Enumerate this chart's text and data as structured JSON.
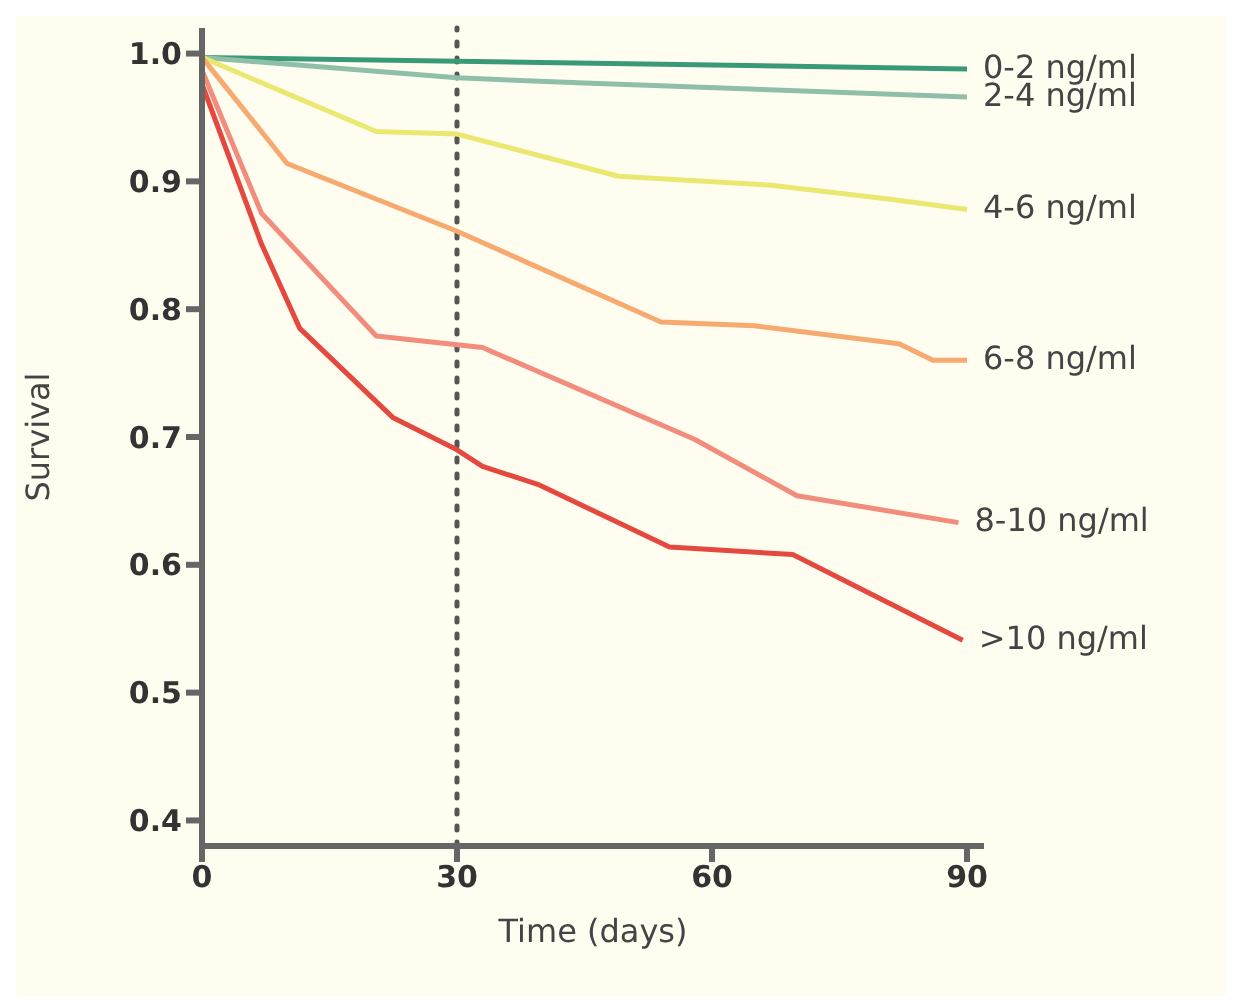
{
  "chart_data": {
    "type": "line",
    "xlabel": "Time (days)",
    "ylabel": "Survival",
    "xlim": [
      0,
      92
    ],
    "xticks": [
      0,
      30,
      60,
      90
    ],
    "ylim": [
      0.38,
      1.02
    ],
    "yticks": [
      {
        "value": 0.4,
        "label": "0.4"
      },
      {
        "value": 0.5,
        "label": "0.5"
      },
      {
        "value": 0.6,
        "label": "0.6"
      },
      {
        "value": 0.7,
        "label": "0.7"
      },
      {
        "value": 0.8,
        "label": "0.8"
      },
      {
        "value": 0.9,
        "label": "0.9"
      },
      {
        "value": 1.0,
        "label": "1.0"
      }
    ],
    "grid": false,
    "legend": false,
    "marker": "none",
    "line_style": "solid",
    "ref_lines": [
      {
        "axis": "x",
        "value": 30,
        "line_style": "dotted",
        "color": "#555555"
      }
    ],
    "series": [
      {
        "name": "0-2 ng/ml",
        "color": "#3a9a78",
        "x": [
          0,
          90
        ],
        "values": [
          0.997,
          0.988
        ]
      },
      {
        "name": "2-4 ng/ml",
        "color": "#8fbfa8",
        "x": [
          0,
          30,
          45,
          90
        ],
        "values": [
          0.997,
          0.981,
          0.977,
          0.966
        ]
      },
      {
        "name": "4-6 ng/ml",
        "color": "#ebe872",
        "x": [
          0,
          20.5,
          30,
          49,
          67,
          81,
          90
        ],
        "values": [
          0.997,
          0.939,
          0.937,
          0.904,
          0.897,
          0.886,
          0.878
        ]
      },
      {
        "name": "6-8 ng/ml",
        "color": "#f6aa70",
        "x": [
          0,
          10,
          30,
          54,
          65,
          82,
          86,
          90
        ],
        "values": [
          0.997,
          0.914,
          0.861,
          0.79,
          0.787,
          0.773,
          0.76,
          0.76
        ]
      },
      {
        "name": "8-10 ng/ml",
        "color": "#f28c7c",
        "x": [
          0,
          7,
          20.5,
          33,
          58,
          70,
          89
        ],
        "values": [
          0.987,
          0.875,
          0.779,
          0.77,
          0.698,
          0.654,
          0.633
        ]
      },
      {
        "name": ">10 ng/ml",
        "color": "#e5483e",
        "x": [
          0,
          7,
          11.5,
          22.5,
          30,
          33,
          39.5,
          55,
          69.5,
          85,
          89.5
        ],
        "values": [
          0.976,
          0.851,
          0.785,
          0.715,
          0.69,
          0.677,
          0.663,
          0.614,
          0.608,
          0.556,
          0.541
        ]
      }
    ]
  }
}
